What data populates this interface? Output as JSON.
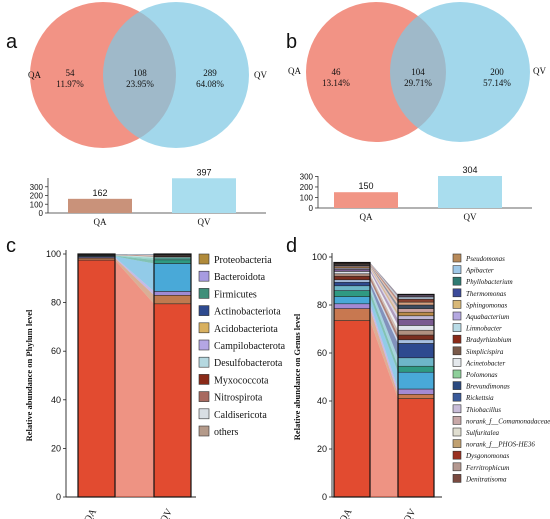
{
  "panels": {
    "a": {
      "label": "a",
      "venn": {
        "left": {
          "name": "QA",
          "count": "54",
          "pct": "11.97%"
        },
        "overlap": {
          "count": "108",
          "pct": "23.95%"
        },
        "right": {
          "name": "QV",
          "count": "289",
          "pct": "64.08%"
        }
      }
    },
    "b": {
      "label": "b",
      "venn": {
        "left": {
          "name": "QA",
          "count": "46",
          "pct": "13.14%"
        },
        "overlap": {
          "count": "104",
          "pct": "29.71%"
        },
        "right": {
          "name": "QV",
          "count": "200",
          "pct": "57.14%"
        }
      }
    },
    "c": {
      "label": "c"
    },
    "d": {
      "label": "d"
    }
  },
  "colors": {
    "venn_left": "#f08070",
    "venn_right": "#7ec8e3",
    "bar_qa_a": "#c9927a",
    "bar_qa_b": "#f19585",
    "bar_qv": "#a9ddee"
  },
  "chart_data": [
    {
      "id": "a-bars",
      "type": "bar",
      "categories": [
        "QA",
        "QV"
      ],
      "values": [
        162,
        397
      ],
      "ylim": [
        0,
        400
      ],
      "yticks": [
        0,
        100,
        200,
        300
      ]
    },
    {
      "id": "b-bars",
      "type": "bar",
      "categories": [
        "QA",
        "QV"
      ],
      "values": [
        150,
        304
      ],
      "ylim": [
        0,
        304
      ],
      "yticks": [
        0,
        100,
        200,
        300
      ]
    },
    {
      "id": "c-stack",
      "type": "bar",
      "stacked": true,
      "ylabel": "Relative abundance on Phylum level",
      "ylim": [
        0,
        100
      ],
      "yticks": [
        0,
        20,
        40,
        60,
        80,
        100
      ],
      "categories": [
        "QA",
        "QV"
      ],
      "series": [
        {
          "name": "Proteobacteria",
          "color": "#e24b30",
          "values": [
            97.5,
            79.5
          ]
        },
        {
          "name": "Bacteroidota",
          "color": "#bf7a50",
          "values": [
            0.8,
            3.5
          ]
        },
        {
          "name": "Firmicutes",
          "color": "#9f8ad4",
          "values": [
            0.4,
            1.6
          ]
        },
        {
          "name": "Actinobacteriota",
          "color": "#49a9d8",
          "values": [
            0.3,
            11.5
          ]
        },
        {
          "name": "Acidobacteriota",
          "color": "#2f9a82",
          "values": [
            0.2,
            1.5
          ]
        },
        {
          "name": "Campilobacterota",
          "color": "#57b8aa",
          "values": [
            0.2,
            0.8
          ]
        },
        {
          "name": "Desulfobacterota",
          "color": "#9fd0cc",
          "values": [
            0.1,
            0.5
          ]
        },
        {
          "name": "Myxococcota",
          "color": "#7a2e1f",
          "values": [
            0.1,
            0.3
          ]
        },
        {
          "name": "Nitrospirota",
          "color": "#a87060",
          "values": [
            0.1,
            0.3
          ]
        },
        {
          "name": "Caldisericota",
          "color": "#dbe3ea",
          "values": [
            0.1,
            0.2
          ]
        },
        {
          "name": "others",
          "color": "#1f3b5c",
          "values": [
            0.2,
            0.3
          ]
        }
      ],
      "legend": [
        {
          "name": "Proteobacteria",
          "color": "#b08a3a"
        },
        {
          "name": "Bacteroidota",
          "color": "#a79be0"
        },
        {
          "name": "Firmicutes",
          "color": "#3f8f7a"
        },
        {
          "name": "Actinobacteriota",
          "color": "#2e4a8f"
        },
        {
          "name": "Acidobacteriota",
          "color": "#d8b060"
        },
        {
          "name": "Campilobacterota",
          "color": "#b4a6e4"
        },
        {
          "name": "Desulfobacterota",
          "color": "#b5d8e0"
        },
        {
          "name": "Myxococcota",
          "color": "#8a2a18"
        },
        {
          "name": "Nitrospirota",
          "color": "#a86a60"
        },
        {
          "name": "Caldisericota",
          "color": "#d9dee4"
        },
        {
          "name": "others",
          "color": "#b49a8a"
        }
      ]
    },
    {
      "id": "d-stack",
      "type": "bar",
      "stacked": true,
      "ylabel": "Relative abundance on Genus level",
      "ylim": [
        0,
        100
      ],
      "yticks": [
        0,
        20,
        40,
        60,
        80,
        100
      ],
      "categories": [
        "QA",
        "QV"
      ],
      "series": [
        {
          "name": "Pseudomonas",
          "color": "#e24b30",
          "values": [
            73.5,
            41
          ]
        },
        {
          "name": "Apibacter",
          "color": "#c87850",
          "values": [
            5,
            1.8
          ]
        },
        {
          "name": "Phyllobacterium",
          "color": "#a48ad4",
          "values": [
            2,
            2.2
          ]
        },
        {
          "name": "Thermomonas",
          "color": "#49a9d8",
          "values": [
            3,
            7
          ]
        },
        {
          "name": "Sphingomonas",
          "color": "#2f9a82",
          "values": [
            2.5,
            2.5
          ]
        },
        {
          "name": "Aquabacterium",
          "color": "#6db6c8",
          "values": [
            2,
            3.5
          ]
        },
        {
          "name": "Limnobacter",
          "color": "#2e4a8f",
          "values": [
            1.5,
            6
          ]
        },
        {
          "name": "Bradyrhizobium",
          "color": "#a8c0e0",
          "values": [
            1,
            1.5
          ]
        },
        {
          "name": "Simplicispira",
          "color": "#7a2e1f",
          "values": [
            1.5,
            2
          ]
        },
        {
          "name": "Acinetobacter",
          "color": "#b09080",
          "values": [
            1,
            2
          ]
        },
        {
          "name": "Polomonas",
          "color": "#dfe3ea",
          "values": [
            1,
            2
          ]
        },
        {
          "name": "Brevundimonas",
          "color": "#7a5a90",
          "values": [
            0.8,
            2.5
          ]
        },
        {
          "name": "Rickettsia",
          "color": "#c0b8d8",
          "values": [
            0.6,
            1.5
          ]
        },
        {
          "name": "Thiobacillus",
          "color": "#b98a4a",
          "values": [
            0.5,
            1.5
          ]
        },
        {
          "name": "norank_f__Comamonadaceae",
          "color": "#c9a0a0",
          "values": [
            0.5,
            1.5
          ]
        },
        {
          "name": "Sulfuritalea",
          "color": "#3c4a60",
          "values": [
            0.3,
            1.5
          ]
        },
        {
          "name": "norank_f__PHOS-HE36",
          "color": "#d8a080",
          "values": [
            0.3,
            1.2
          ]
        },
        {
          "name": "Dysgonomonas",
          "color": "#8a4030",
          "values": [
            0.3,
            1.2
          ]
        },
        {
          "name": "Ferritrophicum",
          "color": "#a0b0c0",
          "values": [
            0.2,
            1
          ]
        },
        {
          "name": "Denitratisoma",
          "color": "#5a4a60",
          "values": [
            0.2,
            1
          ]
        }
      ],
      "legend": [
        {
          "name": "Pseudomonas",
          "color": "#b88a5a"
        },
        {
          "name": "Apibacter",
          "color": "#9fc8e8"
        },
        {
          "name": "Phyllobacterium",
          "color": "#2f7a72"
        },
        {
          "name": "Thermomonas",
          "color": "#3b4a9a"
        },
        {
          "name": "Sphingomonas",
          "color": "#d8b878"
        },
        {
          "name": "Aquabacterium",
          "color": "#b4a8e0"
        },
        {
          "name": "Limnobacter",
          "color": "#b9dbe6"
        },
        {
          "name": "Bradyrhizobium",
          "color": "#8a2a18"
        },
        {
          "name": "Simplicispira",
          "color": "#7a5a4a"
        },
        {
          "name": "Acinetobacter",
          "color": "#e4e8ec"
        },
        {
          "name": "Polomonas",
          "color": "#8ecf9a"
        },
        {
          "name": "Brevundimonas",
          "color": "#2b4a80"
        },
        {
          "name": "Rickettsia",
          "color": "#3a5a9a"
        },
        {
          "name": "Thiobacillus",
          "color": "#c8bcd8"
        },
        {
          "name": "norank_f__Comamonadaceae",
          "color": "#c8a8a8"
        },
        {
          "name": "Sulfuritalea",
          "color": "#e0ded0"
        },
        {
          "name": "norank_f__PHOS-HE36",
          "color": "#c0a070"
        },
        {
          "name": "Dysgonomonas",
          "color": "#9a3020"
        },
        {
          "name": "Ferritrophicum",
          "color": "#b49890"
        },
        {
          "name": "Denitratisoma",
          "color": "#7a4a40"
        }
      ]
    }
  ]
}
